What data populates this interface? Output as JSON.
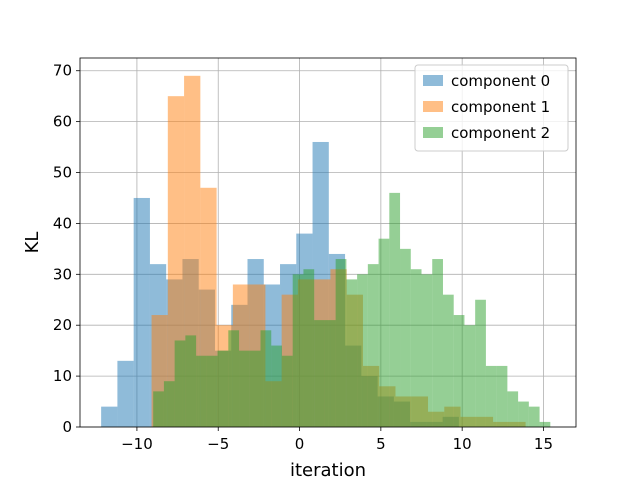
{
  "chart_data": {
    "type": "bar",
    "histogram": true,
    "title": "",
    "xlabel": "iteration",
    "ylabel": "KL",
    "xlim": [
      -13.5,
      17
    ],
    "ylim": [
      0,
      72.5
    ],
    "xticks": [
      -10,
      -5,
      0,
      5,
      10,
      15
    ],
    "yticks": [
      0,
      10,
      20,
      30,
      40,
      50,
      60,
      70
    ],
    "xtick_labels": [
      "−10",
      "−5",
      "0",
      "5",
      "10",
      "15"
    ],
    "ytick_labels": [
      "0",
      "10",
      "20",
      "30",
      "40",
      "50",
      "60",
      "70"
    ],
    "grid": true,
    "legend": "top-right",
    "alpha": 0.5,
    "series": [
      {
        "name": "component 0",
        "color": "#1f77b4",
        "bin_start": -12.2,
        "bin_width": 1.0,
        "values": [
          4,
          13,
          45,
          32,
          29,
          33,
          27,
          15,
          24,
          33,
          28,
          32,
          38,
          56,
          34,
          16,
          10,
          6,
          5,
          1,
          1,
          2
        ]
      },
      {
        "name": "component 1",
        "color": "#ff7f0e",
        "bin_start": -9.1,
        "bin_width": 1.0,
        "values": [
          22,
          65,
          69,
          47,
          20,
          28,
          28,
          9,
          26,
          29,
          29,
          31,
          26,
          12,
          8,
          6,
          6,
          3,
          4,
          2,
          2,
          1,
          1
        ]
      },
      {
        "name": "component 2",
        "color": "#2ca02c",
        "bin_start": -9.0,
        "bin_width": 0.66,
        "values": [
          7,
          9,
          17,
          18,
          14,
          14,
          15,
          19,
          15,
          15,
          19,
          16,
          14,
          30,
          31,
          21,
          21,
          33,
          29,
          30,
          32,
          37,
          46,
          35,
          31,
          30,
          33,
          26,
          22,
          20,
          25,
          12,
          12,
          7,
          5,
          4,
          1
        ]
      }
    ]
  }
}
